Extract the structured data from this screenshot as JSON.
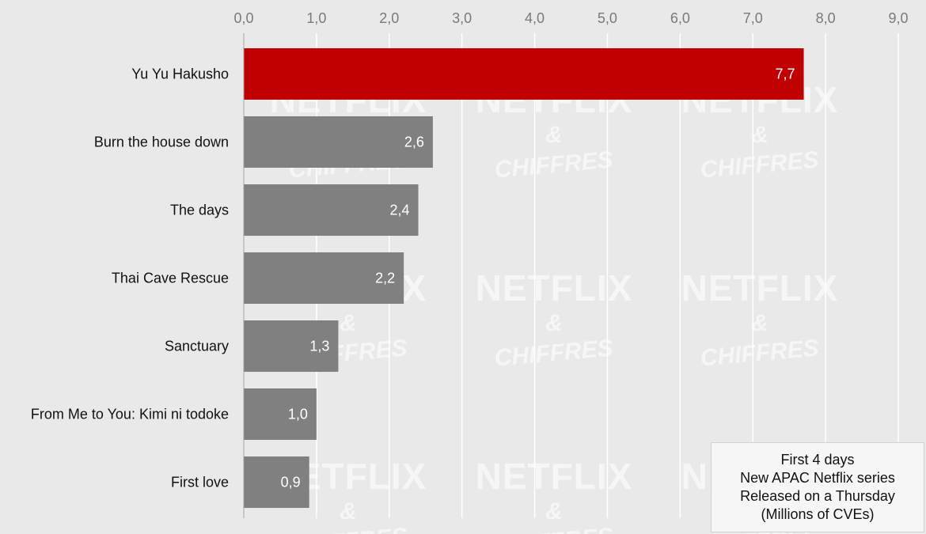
{
  "chart_data": {
    "type": "bar",
    "orientation": "horizontal",
    "categories": [
      "Yu Yu Hakusho",
      "Burn the house down",
      "The days",
      "Thai Cave Rescue",
      "Sanctuary",
      "From Me to You: Kimi ni todoke",
      "First love"
    ],
    "values": [
      7.7,
      2.6,
      2.4,
      2.2,
      1.3,
      1.0,
      0.9
    ],
    "value_labels": [
      "7,7",
      "2,6",
      "2,4",
      "2,2",
      "1,3",
      "1,0",
      "0,9"
    ],
    "xlim": [
      0,
      9
    ],
    "ticks": [
      "0,0",
      "1,0",
      "2,0",
      "3,0",
      "4,0",
      "5,0",
      "6,0",
      "7,0",
      "8,0",
      "9,0"
    ],
    "axis_position": "top",
    "grid": true,
    "highlight_color": "#c00000",
    "bar_color": "#808080",
    "grid_color": "#ffffff"
  },
  "legend": {
    "lines": [
      "First 4 days",
      "New APAC Netflix series",
      "Released on a Thursday",
      "(Millions of CVEs)"
    ]
  },
  "watermark": {
    "line1": "NETFLIX",
    "line2": "&",
    "line3": "CHIFFRES"
  }
}
